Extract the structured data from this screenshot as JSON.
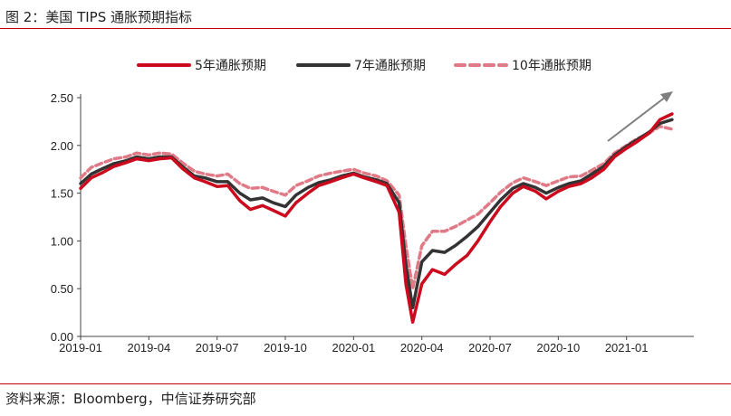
{
  "figure": {
    "title": "图 2：美国 TIPS 通胀预期指标",
    "source": "资料来源：Bloomberg，中信证券研究部"
  },
  "colors": {
    "rule": "#c00000",
    "series": [
      "#cc0a1e",
      "#333333",
      "#e07a86"
    ],
    "arrow": "#7f7f7f"
  },
  "chart_data": {
    "type": "line",
    "x_labels": [
      "2019-01",
      "2019-04",
      "2019-07",
      "2019-10",
      "2020-01",
      "2020-04",
      "2020-07",
      "2020-10",
      "2021-01"
    ],
    "x_range": [
      "2019-01",
      "2021-03"
    ],
    "y_ticks": [
      "0.00",
      "0.50",
      "1.00",
      "1.50",
      "2.00",
      "2.50"
    ],
    "ylim": [
      0,
      2.5
    ],
    "grid": false,
    "legend_position": "top",
    "x": [
      "2019-01-01",
      "2019-01-15",
      "2019-02-01",
      "2019-02-15",
      "2019-03-01",
      "2019-03-15",
      "2019-04-01",
      "2019-04-15",
      "2019-05-01",
      "2019-05-15",
      "2019-06-01",
      "2019-06-15",
      "2019-07-01",
      "2019-07-15",
      "2019-08-01",
      "2019-08-15",
      "2019-09-01",
      "2019-09-15",
      "2019-10-01",
      "2019-10-15",
      "2019-11-01",
      "2019-11-15",
      "2019-12-01",
      "2019-12-15",
      "2020-01-01",
      "2020-01-15",
      "2020-02-01",
      "2020-02-15",
      "2020-03-01",
      "2020-03-10",
      "2020-03-19",
      "2020-04-01",
      "2020-04-15",
      "2020-05-01",
      "2020-05-15",
      "2020-06-01",
      "2020-06-15",
      "2020-07-01",
      "2020-07-15",
      "2020-08-01",
      "2020-08-15",
      "2020-09-01",
      "2020-09-15",
      "2020-10-01",
      "2020-10-15",
      "2020-11-01",
      "2020-11-15",
      "2020-12-01",
      "2020-12-15",
      "2021-01-01",
      "2021-01-15",
      "2021-02-01",
      "2021-02-15",
      "2021-03-01"
    ],
    "series": [
      {
        "name": "5年通胀预期",
        "style": "solid",
        "values": [
          1.55,
          1.66,
          1.72,
          1.78,
          1.82,
          1.86,
          1.84,
          1.86,
          1.87,
          1.76,
          1.66,
          1.62,
          1.57,
          1.58,
          1.42,
          1.33,
          1.37,
          1.32,
          1.26,
          1.4,
          1.5,
          1.58,
          1.62,
          1.66,
          1.7,
          1.66,
          1.62,
          1.58,
          1.3,
          0.55,
          0.15,
          0.55,
          0.7,
          0.65,
          0.75,
          0.85,
          1.0,
          1.2,
          1.36,
          1.5,
          1.57,
          1.52,
          1.44,
          1.52,
          1.57,
          1.6,
          1.66,
          1.75,
          1.88,
          1.97,
          2.04,
          2.13,
          2.27,
          2.33
        ]
      },
      {
        "name": "7年通胀预期",
        "style": "solid",
        "values": [
          1.6,
          1.7,
          1.76,
          1.81,
          1.84,
          1.88,
          1.86,
          1.88,
          1.88,
          1.78,
          1.68,
          1.66,
          1.62,
          1.62,
          1.5,
          1.43,
          1.45,
          1.4,
          1.36,
          1.48,
          1.56,
          1.61,
          1.64,
          1.68,
          1.71,
          1.67,
          1.64,
          1.6,
          1.4,
          0.75,
          0.3,
          0.78,
          0.9,
          0.88,
          0.95,
          1.05,
          1.15,
          1.3,
          1.43,
          1.55,
          1.6,
          1.56,
          1.5,
          1.56,
          1.6,
          1.63,
          1.7,
          1.78,
          1.9,
          1.99,
          2.06,
          2.14,
          2.23,
          2.27
        ]
      },
      {
        "name": "10年通胀预期",
        "style": "dashed",
        "values": [
          1.66,
          1.77,
          1.82,
          1.86,
          1.88,
          1.92,
          1.9,
          1.92,
          1.91,
          1.82,
          1.73,
          1.7,
          1.68,
          1.7,
          1.6,
          1.55,
          1.56,
          1.52,
          1.48,
          1.58,
          1.63,
          1.68,
          1.71,
          1.73,
          1.75,
          1.71,
          1.68,
          1.63,
          1.48,
          0.95,
          0.5,
          0.95,
          1.1,
          1.1,
          1.15,
          1.22,
          1.28,
          1.4,
          1.51,
          1.61,
          1.66,
          1.62,
          1.58,
          1.63,
          1.67,
          1.68,
          1.74,
          1.81,
          1.92,
          2.0,
          2.07,
          2.13,
          2.2,
          2.17
        ]
      }
    ]
  }
}
